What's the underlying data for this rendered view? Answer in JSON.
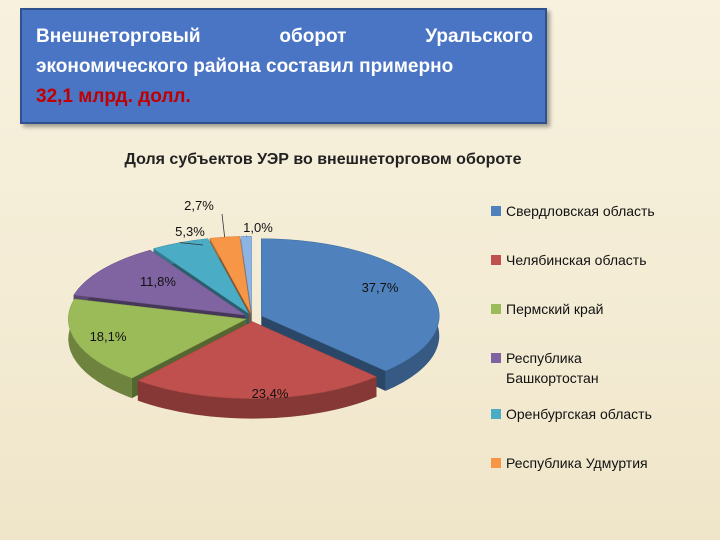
{
  "header": {
    "line1_words": [
      "Внешнеторговый",
      "оборот",
      "Уральского"
    ],
    "line2": "экономического района составил примерно",
    "line3": "32,1 млрд. долл."
  },
  "chart_data": {
    "type": "pie",
    "title": "Доля субъектов УЭР во внешнеторговом обороте",
    "legend_position": "right",
    "categories": [
      "Свердловская область",
      "Челябинская область",
      "Пермский край",
      "Республика Башкортостан",
      "Оренбургская область",
      "Республика Удмуртия",
      ""
    ],
    "values": [
      37.7,
      23.4,
      18.1,
      11.8,
      5.3,
      2.7,
      1.0
    ],
    "labels": [
      "37,7%",
      "23,4%",
      "18,1%",
      "11,8%",
      "5,3%",
      "2,7%",
      "1,0%"
    ],
    "colors": [
      "#4f81bd",
      "#c0504d",
      "#9bbb59",
      "#8064a2",
      "#4bacc6",
      "#f79646",
      "#8eb4e3"
    ],
    "legend": [
      {
        "lines": [
          "Свердловская область"
        ],
        "color": "#4f81bd"
      },
      {
        "lines": [
          "Челябинская область"
        ],
        "color": "#c0504d"
      },
      {
        "lines": [
          "Пермский край"
        ],
        "color": "#9bbb59"
      },
      {
        "lines": [
          "Республика",
          "Башкортостан"
        ],
        "color": "#8064a2"
      },
      {
        "lines": [
          "Оренбургская область"
        ],
        "color": "#4bacc6"
      },
      {
        "lines": [
          "Республика Удмуртия"
        ],
        "color": "#f79646"
      }
    ]
  }
}
